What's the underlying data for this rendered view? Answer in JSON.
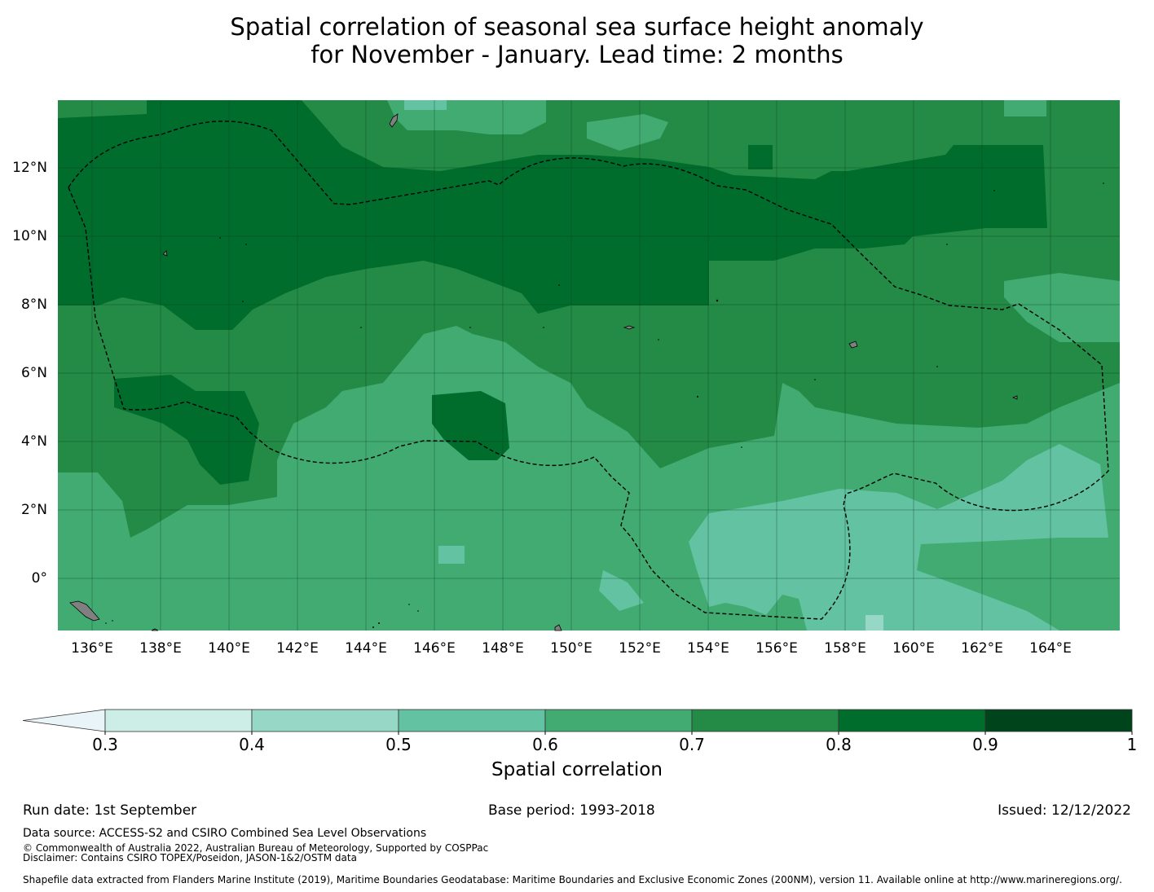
{
  "title_line1": "Spatial correlation of seasonal sea surface height anomaly",
  "title_line2": "for November - January. Lead time: 2 months",
  "lon_ticks": [
    "136°E",
    "138°E",
    "140°E",
    "142°E",
    "144°E",
    "146°E",
    "148°E",
    "150°E",
    "152°E",
    "154°E",
    "156°E",
    "158°E",
    "160°E",
    "162°E",
    "164°E"
  ],
  "lat_ticks": [
    "12°N",
    "10°N",
    "8°N",
    "6°N",
    "4°N",
    "2°N",
    "0°"
  ],
  "colorbar": {
    "title": "Spatial correlation",
    "ticks": [
      "0.3",
      "0.4",
      "0.5",
      "0.6",
      "0.7",
      "0.8",
      "0.9",
      "1"
    ],
    "colors": [
      "#cceee6",
      "#97d7c6",
      "#62c2a1",
      "#41ab72",
      "#238b45",
      "#006d2c",
      "#00441b"
    ],
    "under_color": "#e8f4f7"
  },
  "footer": {
    "run_date": "Run date: 1st September",
    "base_period": "Base period: 1993-2018",
    "issued": "Issued: 12/12/2022",
    "data_source": "Data source: ACCESS-S2 and CSIRO Combined Sea Level Observations",
    "copyright": "© Commonwealth of Australia 2022, Australian Bureau of Meteorology, Supported by COSPPac",
    "disclaimer": "Disclaimer: Contains CSIRO TOPEX/Poseidon, JASON-1&2/OSTM data",
    "shapefile": "Shapefile data extracted from Flanders Marine Institute (2019), Maritime Boundaries Geodatabase: Maritime Boundaries and Exclusive Economic Zones (200NM), version 11. Available online at http://www.marineregions.org/."
  }
}
